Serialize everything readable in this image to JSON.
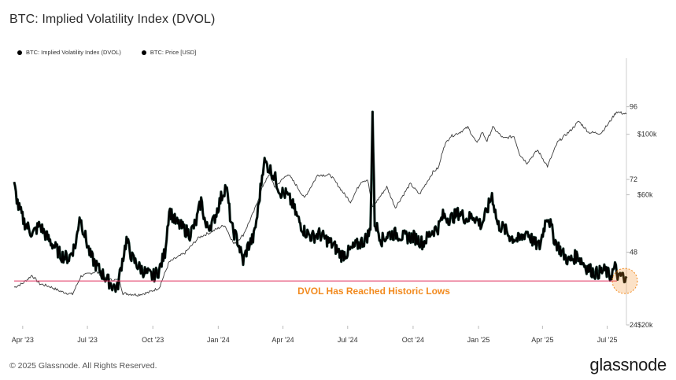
{
  "title": "BTC: Implied Volatility Index (DVOL)",
  "legend": [
    {
      "name": "BTC: Implied Volatility Index (DVOL)",
      "color": "#000000"
    },
    {
      "name": "BTC: Price [USD]",
      "color": "#000000"
    }
  ],
  "footer": "© 2025 Glassnode. All Rights Reserved.",
  "brand": "glassnode",
  "chart_data": {
    "type": "line",
    "x_range": [
      "2023-03-20",
      "2025-07-28"
    ],
    "x_ticks": [
      "Apr '23",
      "Jul '23",
      "Oct '23",
      "Jan '24",
      "Apr '24",
      "Jul '24",
      "Oct '24",
      "Jan '25",
      "Apr '25",
      "Jul '25"
    ],
    "y_left": {
      "label": "DVOL",
      "range": [
        24,
        112
      ],
      "ticks": [
        "96",
        "72",
        "48",
        "24"
      ]
    },
    "y_right": {
      "label": "Price [USD]",
      "scale": "log",
      "range": [
        20000,
        190000
      ],
      "ticks": [
        "$100k",
        "$60k",
        "$20k"
      ]
    },
    "reference_line": {
      "value": 38.5,
      "color": "#e0305f"
    },
    "annotation": {
      "text": "DVOL Has Reached Historic Lows",
      "color": "#f28a1e",
      "at": "2025-07-28"
    },
    "series": [
      {
        "name": "BTC: Implied Volatility Index (DVOL)",
        "axis": "left",
        "style": "thick",
        "points": [
          [
            "2023-03-20",
            70
          ],
          [
            "2023-03-26",
            63
          ],
          [
            "2023-04-03",
            58
          ],
          [
            "2023-04-15",
            54
          ],
          [
            "2023-04-25",
            57
          ],
          [
            "2023-05-05",
            53
          ],
          [
            "2023-05-15",
            50
          ],
          [
            "2023-05-25",
            47
          ],
          [
            "2023-06-05",
            46
          ],
          [
            "2023-06-15",
            51
          ],
          [
            "2023-06-20",
            60
          ],
          [
            "2023-06-27",
            54
          ],
          [
            "2023-07-05",
            47
          ],
          [
            "2023-07-15",
            43
          ],
          [
            "2023-07-25",
            40
          ],
          [
            "2023-08-05",
            37
          ],
          [
            "2023-08-12",
            36
          ],
          [
            "2023-08-18",
            44
          ],
          [
            "2023-08-25",
            52
          ],
          [
            "2023-09-02",
            46
          ],
          [
            "2023-09-12",
            43
          ],
          [
            "2023-09-22",
            41
          ],
          [
            "2023-10-01",
            40
          ],
          [
            "2023-10-10",
            42
          ],
          [
            "2023-10-18",
            48
          ],
          [
            "2023-10-24",
            62
          ],
          [
            "2023-11-02",
            58
          ],
          [
            "2023-11-12",
            56
          ],
          [
            "2023-11-22",
            54
          ],
          [
            "2023-12-01",
            58
          ],
          [
            "2023-12-08",
            65
          ],
          [
            "2023-12-15",
            56
          ],
          [
            "2023-12-25",
            58
          ],
          [
            "2024-01-05",
            66
          ],
          [
            "2024-01-12",
            70
          ],
          [
            "2024-01-20",
            56
          ],
          [
            "2024-01-28",
            52
          ],
          [
            "2024-02-05",
            45
          ],
          [
            "2024-02-12",
            50
          ],
          [
            "2024-02-20",
            53
          ],
          [
            "2024-02-26",
            62
          ],
          [
            "2024-03-05",
            78
          ],
          [
            "2024-03-12",
            76
          ],
          [
            "2024-03-20",
            73
          ],
          [
            "2024-03-28",
            68
          ],
          [
            "2024-04-06",
            67
          ],
          [
            "2024-04-14",
            64
          ],
          [
            "2024-04-22",
            59
          ],
          [
            "2024-05-01",
            55
          ],
          [
            "2024-05-12",
            53
          ],
          [
            "2024-05-22",
            54
          ],
          [
            "2024-06-02",
            52
          ],
          [
            "2024-06-12",
            50
          ],
          [
            "2024-06-22",
            47
          ],
          [
            "2024-07-02",
            48
          ],
          [
            "2024-07-12",
            50
          ],
          [
            "2024-07-25",
            52
          ],
          [
            "2024-08-02",
            55
          ],
          [
            "2024-08-05",
            94
          ],
          [
            "2024-08-08",
            58
          ],
          [
            "2024-08-18",
            52
          ],
          [
            "2024-08-28",
            54
          ],
          [
            "2024-09-08",
            54
          ],
          [
            "2024-09-18",
            53
          ],
          [
            "2024-10-02",
            53
          ],
          [
            "2024-10-15",
            51
          ],
          [
            "2024-10-28",
            55
          ],
          [
            "2024-11-05",
            56
          ],
          [
            "2024-11-12",
            60
          ],
          [
            "2024-11-22",
            59
          ],
          [
            "2024-12-05",
            61
          ],
          [
            "2024-12-15",
            59
          ],
          [
            "2024-12-25",
            60
          ],
          [
            "2025-01-05",
            57
          ],
          [
            "2025-01-12",
            61
          ],
          [
            "2025-01-20",
            67
          ],
          [
            "2025-01-28",
            57
          ],
          [
            "2025-02-05",
            56
          ],
          [
            "2025-02-15",
            53
          ],
          [
            "2025-02-28",
            52
          ],
          [
            "2025-03-10",
            55
          ],
          [
            "2025-03-20",
            51
          ],
          [
            "2025-03-28",
            50
          ],
          [
            "2025-04-07",
            60
          ],
          [
            "2025-04-10",
            59
          ],
          [
            "2025-04-18",
            52
          ],
          [
            "2025-04-28",
            48
          ],
          [
            "2025-05-08",
            45
          ],
          [
            "2025-05-20",
            47
          ],
          [
            "2025-06-02",
            43
          ],
          [
            "2025-06-15",
            41
          ],
          [
            "2025-06-28",
            42
          ],
          [
            "2025-07-05",
            40
          ],
          [
            "2025-07-12",
            43
          ],
          [
            "2025-07-18",
            39
          ],
          [
            "2025-07-22",
            41
          ],
          [
            "2025-07-26",
            37
          ],
          [
            "2025-07-28",
            40
          ]
        ]
      },
      {
        "name": "BTC: Price [USD]",
        "axis": "right",
        "style": "thin",
        "points": [
          [
            "2023-03-20",
            27500
          ],
          [
            "2023-04-01",
            28400
          ],
          [
            "2023-04-14",
            30400
          ],
          [
            "2023-04-25",
            28300
          ],
          [
            "2023-05-10",
            27600
          ],
          [
            "2023-05-25",
            26500
          ],
          [
            "2023-06-10",
            25900
          ],
          [
            "2023-06-22",
            30200
          ],
          [
            "2023-07-13",
            31400
          ],
          [
            "2023-07-30",
            29300
          ],
          [
            "2023-08-15",
            29200
          ],
          [
            "2023-08-20",
            26100
          ],
          [
            "2023-09-10",
            25800
          ],
          [
            "2023-09-25",
            26300
          ],
          [
            "2023-10-10",
            27400
          ],
          [
            "2023-10-24",
            34000
          ],
          [
            "2023-11-15",
            36700
          ],
          [
            "2023-12-05",
            41900
          ],
          [
            "2023-12-20",
            43600
          ],
          [
            "2024-01-10",
            46500
          ],
          [
            "2024-01-23",
            39600
          ],
          [
            "2024-02-05",
            42700
          ],
          [
            "2024-02-20",
            52000
          ],
          [
            "2024-03-05",
            66000
          ],
          [
            "2024-03-14",
            71400
          ],
          [
            "2024-03-20",
            63800
          ],
          [
            "2024-04-08",
            71600
          ],
          [
            "2024-04-20",
            64900
          ],
          [
            "2024-05-01",
            58300
          ],
          [
            "2024-05-20",
            71000
          ],
          [
            "2024-06-07",
            70800
          ],
          [
            "2024-06-25",
            61000
          ],
          [
            "2024-07-05",
            56500
          ],
          [
            "2024-07-20",
            67200
          ],
          [
            "2024-07-29",
            68200
          ],
          [
            "2024-08-05",
            54000
          ],
          [
            "2024-08-25",
            64100
          ],
          [
            "2024-09-06",
            53900
          ],
          [
            "2024-09-27",
            65800
          ],
          [
            "2024-10-10",
            60300
          ],
          [
            "2024-10-29",
            72700
          ],
          [
            "2024-11-06",
            75500
          ],
          [
            "2024-11-13",
            90000
          ],
          [
            "2024-11-22",
            98000
          ],
          [
            "2024-12-05",
            101500
          ],
          [
            "2024-12-17",
            106000
          ],
          [
            "2024-12-30",
            92400
          ],
          [
            "2025-01-06",
            102000
          ],
          [
            "2025-01-13",
            94500
          ],
          [
            "2025-01-21",
            106100
          ],
          [
            "2025-02-05",
            96600
          ],
          [
            "2025-02-20",
            98300
          ],
          [
            "2025-02-28",
            84400
          ],
          [
            "2025-03-10",
            78500
          ],
          [
            "2025-03-25",
            87500
          ],
          [
            "2025-04-08",
            76300
          ],
          [
            "2025-04-22",
            93400
          ],
          [
            "2025-05-10",
            103000
          ],
          [
            "2025-05-22",
            111600
          ],
          [
            "2025-06-05",
            101600
          ],
          [
            "2025-06-22",
            100900
          ],
          [
            "2025-07-03",
            109600
          ],
          [
            "2025-07-14",
            121000
          ],
          [
            "2025-07-28",
            118500
          ]
        ]
      }
    ]
  }
}
